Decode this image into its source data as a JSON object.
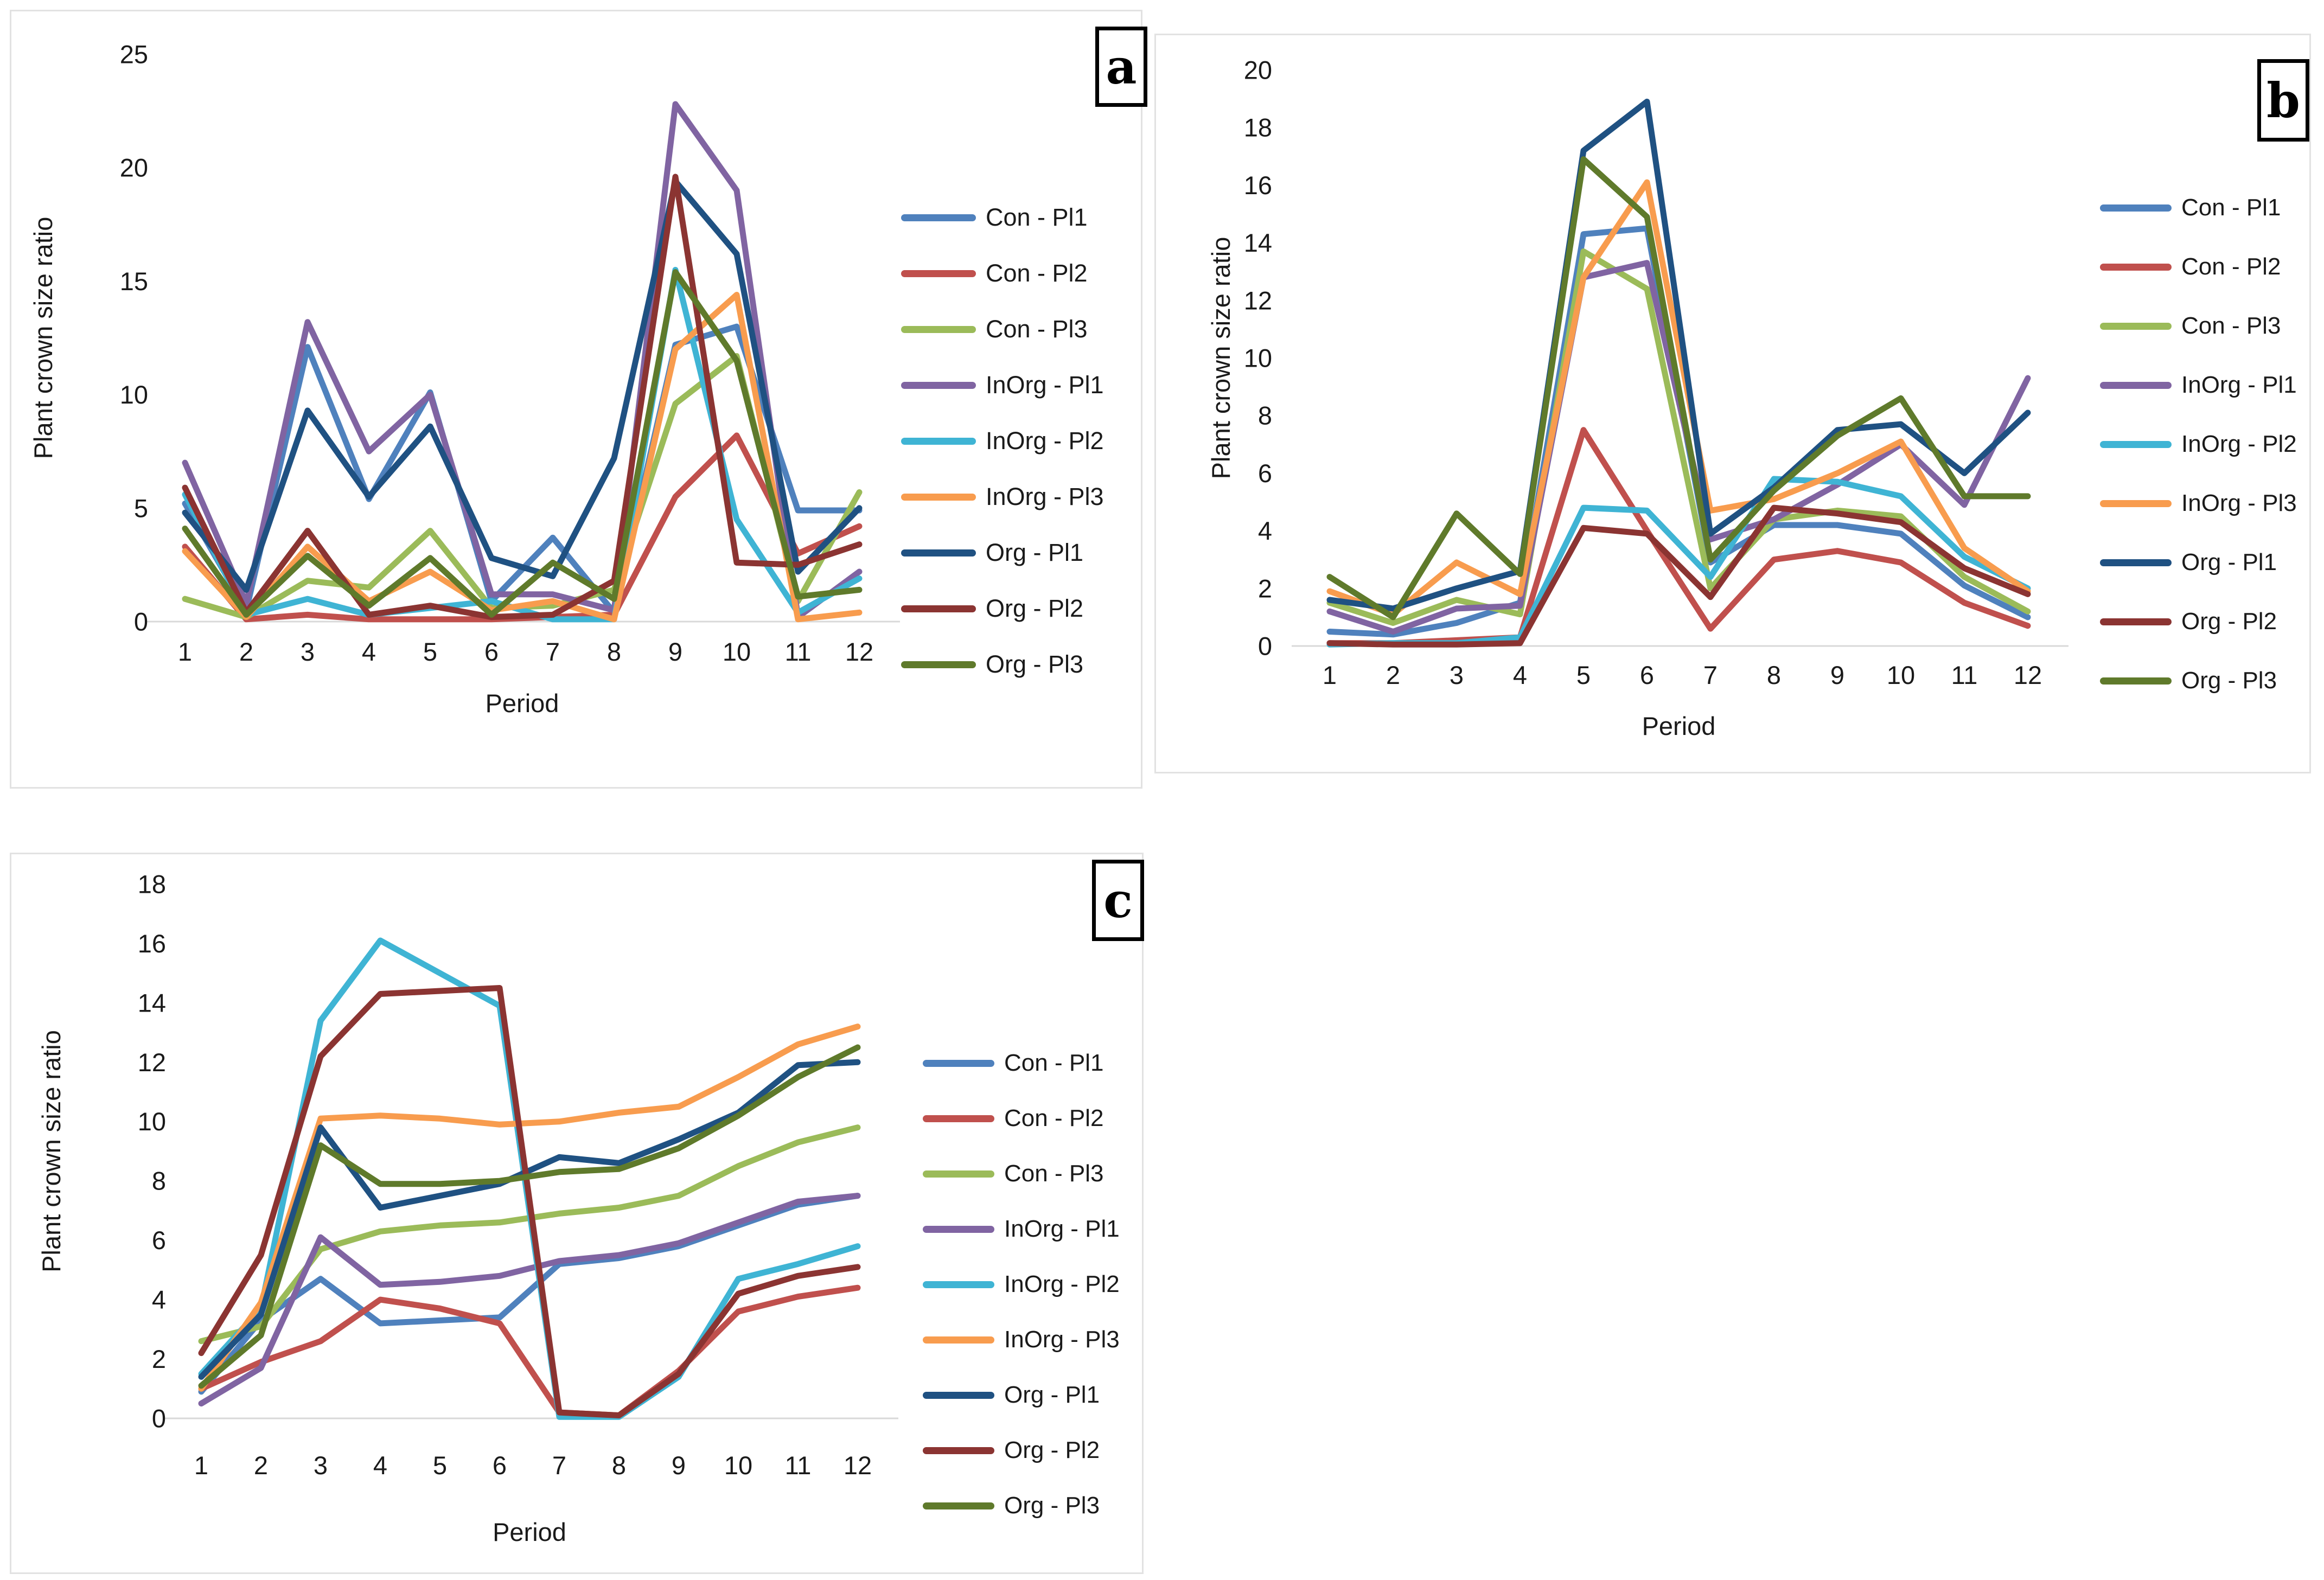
{
  "figure": {
    "background": "#ffffff",
    "panel_border_color": "#e2e2e2",
    "axis_line_color": "#d9d9d9",
    "text_color": "#1a1a1a"
  },
  "chart_data": [
    {
      "type": "line",
      "panel_label": "a",
      "xlabel": "Period",
      "ylabel": "Plant crown size ratio",
      "x": [
        1,
        2,
        3,
        4,
        5,
        6,
        7,
        8,
        9,
        10,
        11,
        12
      ],
      "ylim": [
        0,
        25
      ],
      "yticks": [
        0,
        5,
        10,
        15,
        20,
        25
      ],
      "grid": false,
      "legend_position": "right",
      "series": [
        {
          "name": "Con - Pl1",
          "color": "#4f81bd",
          "values": [
            5.2,
            0.5,
            12.1,
            5.4,
            10.1,
            0.9,
            3.7,
            0.4,
            12.2,
            13.0,
            4.9,
            4.9
          ]
        },
        {
          "name": "Con - Pl2",
          "color": "#c0504d",
          "values": [
            3.3,
            0.1,
            0.3,
            0.1,
            0.1,
            0.1,
            0.2,
            0.3,
            5.5,
            8.2,
            3.0,
            4.2
          ]
        },
        {
          "name": "Con - Pl3",
          "color": "#9bbb59",
          "values": [
            1.0,
            0.2,
            1.8,
            1.5,
            4.0,
            0.6,
            0.7,
            1.4,
            9.6,
            11.7,
            0.9,
            5.7
          ]
        },
        {
          "name": "InOrg - Pl1",
          "color": "#8064a2",
          "values": [
            7.0,
            0.8,
            13.2,
            7.5,
            10.0,
            1.2,
            1.2,
            0.5,
            22.8,
            19.0,
            0.2,
            2.2
          ]
        },
        {
          "name": "InOrg - Pl2",
          "color": "#3fb4d4",
          "values": [
            5.6,
            0.3,
            1.0,
            0.3,
            0.6,
            0.9,
            0.1,
            0.1,
            15.5,
            4.5,
            0.4,
            1.9
          ]
        },
        {
          "name": "InOrg - Pl3",
          "color": "#f89c4e",
          "values": [
            3.1,
            0.2,
            3.3,
            0.9,
            2.2,
            0.5,
            0.9,
            0.1,
            12.0,
            14.4,
            0.1,
            0.4
          ]
        },
        {
          "name": "Org - Pl1",
          "color": "#1f5182",
          "values": [
            4.8,
            1.4,
            9.3,
            5.5,
            8.6,
            2.8,
            2.0,
            7.2,
            19.4,
            16.2,
            2.2,
            5.0
          ]
        },
        {
          "name": "Org - Pl2",
          "color": "#8b3432",
          "values": [
            5.9,
            0.4,
            4.0,
            0.3,
            0.7,
            0.2,
            0.3,
            1.8,
            19.6,
            2.6,
            2.5,
            3.4
          ]
        },
        {
          "name": "Org - Pl3",
          "color": "#5f7a2b",
          "values": [
            4.1,
            0.3,
            2.9,
            0.7,
            2.8,
            0.3,
            2.6,
            1.0,
            15.4,
            11.5,
            1.1,
            1.4
          ]
        }
      ]
    },
    {
      "type": "line",
      "panel_label": "b",
      "xlabel": "Period",
      "ylabel": "Plant crown size ratio",
      "x": [
        1,
        2,
        3,
        4,
        5,
        6,
        7,
        8,
        9,
        10,
        11,
        12
      ],
      "ylim": [
        0,
        20
      ],
      "yticks": [
        0,
        2,
        4,
        6,
        8,
        10,
        12,
        14,
        16,
        18,
        20
      ],
      "grid": false,
      "legend_position": "right",
      "series": [
        {
          "name": "Con - Pl1",
          "color": "#4f81bd",
          "values": [
            0.5,
            0.4,
            0.8,
            1.5,
            14.3,
            14.5,
            2.9,
            4.2,
            4.2,
            3.9,
            2.1,
            1.0
          ]
        },
        {
          "name": "Con - Pl2",
          "color": "#c0504d",
          "values": [
            0.1,
            0.1,
            0.2,
            0.3,
            7.5,
            4.0,
            0.6,
            3.0,
            3.3,
            2.9,
            1.5,
            0.7
          ]
        },
        {
          "name": "Con - Pl3",
          "color": "#9bbb59",
          "values": [
            1.5,
            0.8,
            1.6,
            1.1,
            13.7,
            12.4,
            2.0,
            4.4,
            4.7,
            4.5,
            2.4,
            1.2
          ]
        },
        {
          "name": "InOrg - Pl1",
          "color": "#8064a2",
          "values": [
            1.2,
            0.5,
            1.3,
            1.4,
            12.8,
            13.3,
            3.7,
            4.4,
            5.6,
            7.0,
            4.9,
            9.3
          ]
        },
        {
          "name": "InOrg - Pl2",
          "color": "#3fb4d4",
          "values": [
            0.05,
            0.1,
            0.1,
            0.3,
            4.8,
            4.7,
            2.4,
            5.8,
            5.7,
            5.2,
            3.1,
            2.0
          ]
        },
        {
          "name": "InOrg - Pl3",
          "color": "#f89c4e",
          "values": [
            1.9,
            1.1,
            2.9,
            1.8,
            12.8,
            16.1,
            4.7,
            5.1,
            6.0,
            7.1,
            3.4,
            1.9
          ]
        },
        {
          "name": "Org - Pl1",
          "color": "#1f5182",
          "values": [
            1.6,
            1.3,
            2.0,
            2.6,
            17.2,
            18.9,
            3.9,
            5.5,
            7.5,
            7.7,
            6.0,
            8.1
          ]
        },
        {
          "name": "Org - Pl2",
          "color": "#8b3432",
          "values": [
            0.1,
            0.05,
            0.05,
            0.1,
            4.1,
            3.9,
            1.7,
            4.8,
            4.6,
            4.3,
            2.7,
            1.8
          ]
        },
        {
          "name": "Org - Pl3",
          "color": "#5f7a2b",
          "values": [
            2.4,
            1.0,
            4.6,
            2.5,
            16.9,
            14.9,
            3.0,
            5.4,
            7.3,
            8.6,
            5.2,
            5.2
          ]
        }
      ]
    },
    {
      "type": "line",
      "panel_label": "c",
      "xlabel": "Period",
      "ylabel": "Plant crown size ratio",
      "x": [
        1,
        2,
        3,
        4,
        5,
        6,
        7,
        8,
        9,
        10,
        11,
        12
      ],
      "ylim": [
        0,
        18
      ],
      "yticks": [
        0,
        2,
        4,
        6,
        8,
        10,
        12,
        14,
        16,
        18
      ],
      "grid": false,
      "legend_position": "right",
      "series": [
        {
          "name": "Con - Pl1",
          "color": "#4f81bd",
          "values": [
            0.9,
            3.3,
            4.7,
            3.2,
            3.3,
            3.4,
            5.2,
            5.4,
            5.8,
            6.5,
            7.2,
            7.5
          ]
        },
        {
          "name": "Con - Pl2",
          "color": "#c0504d",
          "values": [
            1.0,
            1.9,
            2.6,
            4.0,
            3.7,
            3.2,
            0.2,
            0.1,
            1.6,
            3.6,
            4.1,
            4.4
          ]
        },
        {
          "name": "Con - Pl3",
          "color": "#9bbb59",
          "values": [
            2.6,
            3.1,
            5.7,
            6.3,
            6.5,
            6.6,
            6.9,
            7.1,
            7.5,
            8.5,
            9.3,
            9.8
          ]
        },
        {
          "name": "InOrg - Pl1",
          "color": "#8064a2",
          "values": [
            0.5,
            1.7,
            6.1,
            4.5,
            4.6,
            4.8,
            5.3,
            5.5,
            5.9,
            6.6,
            7.3,
            7.5
          ]
        },
        {
          "name": "InOrg - Pl2",
          "color": "#3fb4d4",
          "values": [
            1.5,
            3.7,
            13.4,
            16.1,
            15.0,
            13.9,
            0.05,
            0.05,
            1.4,
            4.7,
            5.2,
            5.8
          ]
        },
        {
          "name": "InOrg - Pl3",
          "color": "#f89c4e",
          "values": [
            1.0,
            3.9,
            10.1,
            10.2,
            10.1,
            9.9,
            10.0,
            10.3,
            10.5,
            11.5,
            12.6,
            13.2
          ]
        },
        {
          "name": "Org - Pl1",
          "color": "#1f5182",
          "values": [
            1.4,
            3.5,
            9.8,
            7.1,
            7.5,
            7.9,
            8.8,
            8.6,
            9.4,
            10.3,
            11.9,
            12.0
          ]
        },
        {
          "name": "Org - Pl2",
          "color": "#8b3432",
          "values": [
            2.2,
            5.5,
            12.2,
            14.3,
            14.4,
            14.5,
            0.2,
            0.1,
            1.5,
            4.2,
            4.8,
            5.1
          ]
        },
        {
          "name": "Org - Pl3",
          "color": "#5f7a2b",
          "values": [
            1.1,
            2.8,
            9.2,
            7.9,
            7.9,
            8.0,
            8.3,
            8.4,
            9.1,
            10.2,
            11.5,
            12.5
          ]
        }
      ]
    }
  ]
}
